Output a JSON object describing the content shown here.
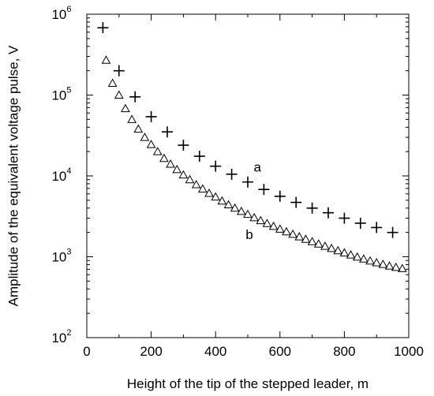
{
  "chart_data": {
    "type": "scatter",
    "title": "",
    "xlabel": "Height of the tip of the stepped leader, m",
    "ylabel": "Amplitude of the equivalent voltage pulse, V",
    "xlim": [
      0,
      1000
    ],
    "ylim": [
      100,
      1000000
    ],
    "yscale": "log",
    "grid": false,
    "x_ticks": [
      0,
      200,
      400,
      600,
      800,
      1000
    ],
    "x_tick_labels": [
      "0",
      "200",
      "400",
      "600",
      "800",
      "1000"
    ],
    "y_ticks": [
      100,
      1000,
      10000,
      100000,
      1000000
    ],
    "y_tick_labels": [
      {
        "base": "10",
        "exp": "2"
      },
      {
        "base": "10",
        "exp": "3"
      },
      {
        "base": "10",
        "exp": "4"
      },
      {
        "base": "10",
        "exp": "5"
      },
      {
        "base": "10",
        "exp": "6"
      }
    ],
    "series": [
      {
        "name": "a",
        "marker": "plus",
        "x": [
          50,
          100,
          150,
          200,
          250,
          300,
          350,
          400,
          450,
          500,
          550,
          600,
          650,
          700,
          750,
          800,
          850,
          900,
          950
        ],
        "y": [
          680000,
          200000,
          95000,
          54000,
          35000,
          24000,
          17500,
          13200,
          10500,
          8400,
          6800,
          5600,
          4700,
          4000,
          3500,
          3000,
          2600,
          2300,
          2000
        ]
      },
      {
        "name": "b",
        "marker": "triangle",
        "x": [
          60,
          80,
          100,
          120,
          140,
          160,
          180,
          200,
          220,
          240,
          260,
          280,
          300,
          320,
          340,
          360,
          380,
          400,
          420,
          440,
          460,
          480,
          500,
          520,
          540,
          560,
          580,
          600,
          620,
          640,
          660,
          680,
          700,
          720,
          740,
          760,
          780,
          800,
          820,
          840,
          860,
          880,
          900,
          920,
          940,
          960,
          980
        ],
        "y": [
          270000,
          140000,
          100000,
          68000,
          50000,
          38000,
          30000,
          24500,
          20000,
          16500,
          14000,
          12000,
          10300,
          9000,
          7800,
          6900,
          6100,
          5500,
          4900,
          4400,
          4000,
          3650,
          3350,
          3050,
          2800,
          2580,
          2380,
          2200,
          2040,
          1900,
          1770,
          1650,
          1540,
          1440,
          1350,
          1270,
          1190,
          1120,
          1055,
          995,
          940,
          890,
          845,
          805,
          770,
          740,
          715
        ]
      }
    ],
    "annotations": [
      {
        "text": "a",
        "x": 530,
        "y": 13000
      },
      {
        "text": "b",
        "x": 505,
        "y": 1900
      }
    ]
  }
}
